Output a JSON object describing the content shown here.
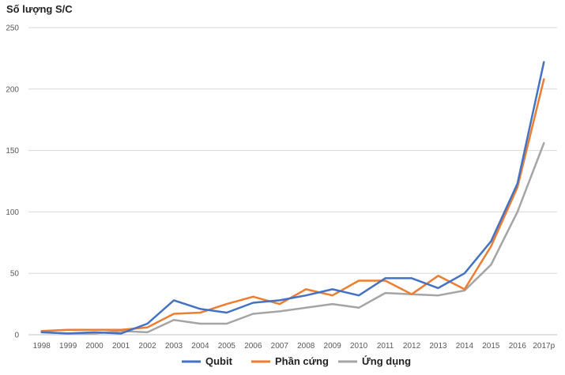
{
  "chart_data": {
    "type": "line",
    "ylabel": "Số lượng S/C",
    "xlabel": "",
    "title": "",
    "ylim": [
      0,
      250
    ],
    "yticks": [
      0,
      50,
      100,
      150,
      200,
      250
    ],
    "grid": true,
    "legend_position": "bottom",
    "categories": [
      "1998",
      "1999",
      "2000",
      "2001",
      "2002",
      "2003",
      "2004",
      "2005",
      "2006",
      "2007",
      "2008",
      "2009",
      "2010",
      "2011",
      "2012",
      "2013",
      "2014",
      "2015",
      "2016",
      "2017p"
    ],
    "series": [
      {
        "name": "Qubit",
        "color": "#4472c4",
        "values": [
          2,
          1,
          2,
          1,
          9,
          28,
          21,
          18,
          26,
          28,
          32,
          37,
          32,
          46,
          46,
          38,
          50,
          76,
          123,
          222
        ]
      },
      {
        "name": "Phần cứng",
        "color": "#ed7d31",
        "values": [
          3,
          4,
          4,
          4,
          6,
          17,
          18,
          25,
          31,
          25,
          37,
          32,
          44,
          44,
          33,
          48,
          37,
          72,
          120,
          208
        ]
      },
      {
        "name": "Ứng dụng",
        "color": "#a5a5a5",
        "values": [
          2,
          1,
          1,
          3,
          2,
          12,
          9,
          9,
          17,
          19,
          22,
          25,
          22,
          34,
          33,
          32,
          36,
          57,
          100,
          156
        ]
      }
    ]
  }
}
